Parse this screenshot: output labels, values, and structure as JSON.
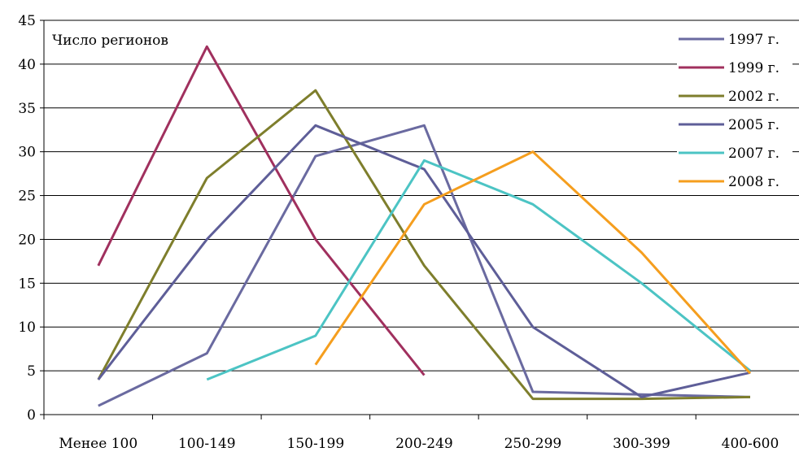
{
  "chart_data": {
    "type": "line",
    "ylabel": "Число регионов",
    "xlabel": "",
    "ylim": [
      0,
      45
    ],
    "yticks": [
      0,
      5,
      10,
      15,
      20,
      25,
      30,
      35,
      40,
      45
    ],
    "grid": true,
    "legend_position": "right",
    "categories": [
      "Менее 100",
      "100-149",
      "150-199",
      "200-249",
      "250-299",
      "300-399",
      "400-600"
    ],
    "series": [
      {
        "name": "1997 г.",
        "color": "#6a6aa0",
        "values": [
          1,
          7,
          29.5,
          33,
          2.6,
          2.3,
          2
        ]
      },
      {
        "name": "1999 г.",
        "color": "#a0305e",
        "values": [
          17,
          42,
          20,
          4.5,
          null,
          null,
          null
        ]
      },
      {
        "name": "2002 г.",
        "color": "#7e7e2c",
        "values": [
          4,
          27,
          37,
          17,
          1.8,
          1.8,
          2
        ]
      },
      {
        "name": "2005 г.",
        "color": "#5e5e98",
        "values": [
          4,
          20,
          33,
          28,
          10,
          2,
          4.8
        ]
      },
      {
        "name": "2007 г.",
        "color": "#4cc4c4",
        "values": [
          null,
          4,
          9,
          29,
          24,
          15,
          5
        ]
      },
      {
        "name": "2008 г.",
        "color": "#f59e1e",
        "values": [
          null,
          null,
          5.7,
          24,
          30,
          18.5,
          4.7
        ]
      }
    ]
  }
}
